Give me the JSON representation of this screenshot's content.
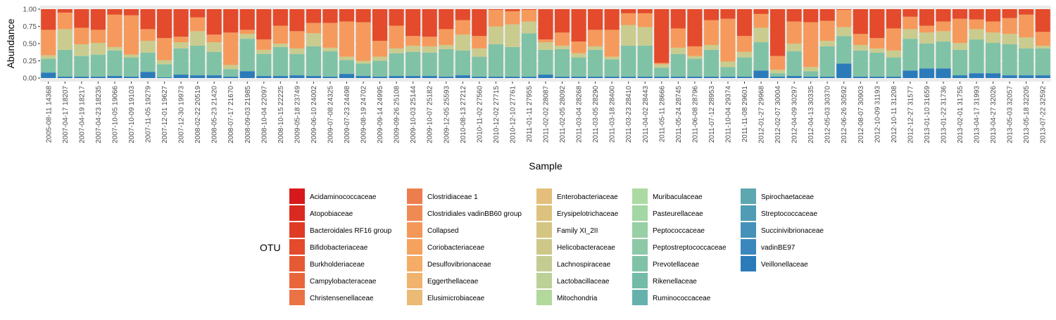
{
  "chart_data": {
    "type": "bar",
    "stacked": true,
    "title": "",
    "xlabel": "Sample",
    "ylabel": "Abundance",
    "ylim": [
      0,
      1
    ],
    "yticks": [
      "0.00",
      "0.25",
      "0.50",
      "0.75",
      "1.00"
    ],
    "yticks_values": [
      0,
      0.25,
      0.5,
      0.75,
      1.0
    ],
    "grid": true,
    "legend_title": "OTU",
    "legend_position": "bottom",
    "categories": [
      "2005-08-11 14368",
      "2007-04-17 18207",
      "2007-04-19 18217",
      "2007-04-23 18235",
      "2007-10-05 19066",
      "2007-10-09 19103",
      "2007-11-05 19279",
      "2007-12-01 19627",
      "2007-12-30 19973",
      "2008-02-22 20519",
      "2008-05-23 21420",
      "2008-07-17 21670",
      "2008-09-03 21985",
      "2008-10-04 22097",
      "2008-10-15 22225",
      "2009-05-18 23749",
      "2009-06-10 24002",
      "2009-07-08 24325",
      "2009-07-23 24498",
      "2009-08-19 24702",
      "2009-09-14 24995",
      "2009-09-26 25108",
      "2009-10-03 25144",
      "2009-10-07 25182",
      "2009-12-05 25593",
      "2010-08-13 27212",
      "2010-11-02 27560",
      "2010-12-02 27715",
      "2010-12-10 27761",
      "2011-01-11 27955",
      "2011-02-02 28087",
      "2011-02-05 28092",
      "2011-03-04 28268",
      "2011-03-05 28290",
      "2011-03-18 28400",
      "2011-03-23 28410",
      "2011-04-02 28443",
      "2011-05-11 28666",
      "2011-05-24 28745",
      "2011-06-08 28796",
      "2011-07-12 28953",
      "2011-10-04 29374",
      "2011-11-08 29601",
      "2012-01-27 29968",
      "2012-02-07 30004",
      "2012-04-09 30297",
      "2012-04-13 30335",
      "2012-05-03 30370",
      "2012-06-26 30592",
      "2012-08-07 30903",
      "2012-10-09 31193",
      "2012-10-11 31208",
      "2012-12-27 31577",
      "2013-01-10 31659",
      "2013-01-22 31736",
      "2013-02-01 31755",
      "2013-04-17 31993",
      "2013-04-27 32026",
      "2013-05-03 32057",
      "2013-05-18 32205",
      "2013-07-22 32592"
    ],
    "series": [
      {
        "name": "Acidaminococcaceae",
        "color": "#D7191C"
      },
      {
        "name": "Atopobiaceae",
        "color": "#DA2A1F"
      },
      {
        "name": "Bacteroidales RF16 group",
        "color": "#DF3B25"
      },
      {
        "name": "Bifidobacteriaceae",
        "color": "#E34B2C"
      },
      {
        "name": "Burkholderiaceae",
        "color": "#E65A33"
      },
      {
        "name": "Campylobacteraceae",
        "color": "#E9663D"
      },
      {
        "name": "Christensenellaceae",
        "color": "#EB7245"
      },
      {
        "name": "Clostridiaceae 1",
        "color": "#EE7D4E"
      },
      {
        "name": "Clostridiales vadinBB60 group",
        "color": "#F08A55"
      },
      {
        "name": "Collapsed",
        "color": "#F4985A"
      },
      {
        "name": "Coriobacteriaceae",
        "color": "#F5A25F"
      },
      {
        "name": "Desulfovibrionaceae",
        "color": "#F6AC66"
      },
      {
        "name": "Eggerthellaceae",
        "color": "#F0B36E"
      },
      {
        "name": "Elusimicrobiaceae",
        "color": "#EBBA74"
      },
      {
        "name": "Enterobacteriaceae",
        "color": "#E4BE7A"
      },
      {
        "name": "Erysipelotrichaceae",
        "color": "#DCC27E"
      },
      {
        "name": "Family XI_2II",
        "color": "#D5C582"
      },
      {
        "name": "Helicobacteraceae",
        "color": "#CDC88A"
      },
      {
        "name": "Lachnospiraceae",
        "color": "#C5CC92"
      },
      {
        "name": "Lactobacillaceae",
        "color": "#BBD196"
      },
      {
        "name": "Mitochondria",
        "color": "#B3D89B"
      },
      {
        "name": "Muribaculaceae",
        "color": "#ABDBA0"
      },
      {
        "name": "Pasteurellaceae",
        "color": "#A3D7A4"
      },
      {
        "name": "Peptococcaceae",
        "color": "#98CFA5"
      },
      {
        "name": "Peptostreptococcaceae",
        "color": "#8DC8A7"
      },
      {
        "name": "Prevotellaceae",
        "color": "#80C2A6"
      },
      {
        "name": "Rikenellaceae",
        "color": "#73BAA7"
      },
      {
        "name": "Ruminococcaceae",
        "color": "#67B1AD"
      },
      {
        "name": "Spirochaetaceae",
        "color": "#5CA7B0"
      },
      {
        "name": "Streptococcaceae",
        "color": "#519CB5"
      },
      {
        "name": "Succinivibrionaceae",
        "color": "#4591BA"
      },
      {
        "name": "vadinBE97",
        "color": "#3A87BD"
      },
      {
        "name": "Veillonellaceae",
        "color": "#2B7BBA"
      }
    ],
    "groups": {
      "red": "#E34B2C",
      "orange": "#F59A5C",
      "khaki": "#C9CC8E",
      "teal": "#80C2A6",
      "blue": "#2B7BBA"
    },
    "bands": {
      "blue": [
        0.08,
        0.02,
        0.02,
        0.02,
        0.03,
        0.02,
        0.09,
        0.01,
        0.05,
        0.04,
        0.04,
        0.02,
        0.1,
        0.03,
        0.03,
        0.04,
        0.03,
        0.02,
        0.06,
        0.03,
        0.02,
        0.03,
        0.03,
        0.03,
        0.02,
        0.04,
        0.02,
        0.02,
        0.02,
        0.02,
        0.05,
        0.02,
        0.02,
        0.02,
        0.02,
        0.02,
        0.02,
        0.02,
        0.02,
        0.02,
        0.02,
        0.02,
        0.02,
        0.11,
        0.02,
        0.03,
        0.02,
        0.02,
        0.21,
        0.02,
        0.02,
        0.02,
        0.11,
        0.14,
        0.14,
        0.04,
        0.07,
        0.07,
        0.04,
        0.04,
        0.04
      ],
      "teal": [
        0.2,
        0.39,
        0.3,
        0.32,
        0.37,
        0.28,
        0.28,
        0.19,
        0.38,
        0.43,
        0.34,
        0.11,
        0.47,
        0.32,
        0.42,
        0.31,
        0.43,
        0.37,
        0.2,
        0.18,
        0.23,
        0.33,
        0.35,
        0.34,
        0.4,
        0.36,
        0.29,
        0.47,
        0.43,
        0.63,
        0.36,
        0.4,
        0.28,
        0.39,
        0.25,
        0.45,
        0.45,
        0.13,
        0.33,
        0.26,
        0.39,
        0.14,
        0.28,
        0.41,
        0.05,
        0.36,
        0.08,
        0.44,
        0.4,
        0.38,
        0.35,
        0.28,
        0.46,
        0.36,
        0.39,
        0.37,
        0.49,
        0.44,
        0.45,
        0.39,
        0.39
      ],
      "khaki": [
        0.05,
        0.3,
        0.17,
        0.17,
        0.05,
        0.04,
        0.17,
        0.06,
        0.09,
        0.21,
        0.14,
        0.06,
        0.07,
        0.06,
        0.05,
        0.08,
        0.19,
        0.05,
        0.05,
        0.04,
        0.06,
        0.07,
        0.09,
        0.09,
        0.06,
        0.23,
        0.12,
        0.26,
        0.33,
        0.17,
        0.11,
        0.05,
        0.06,
        0.05,
        0.04,
        0.3,
        0.27,
        0.05,
        0.09,
        0.04,
        0.07,
        0.08,
        0.08,
        0.21,
        0.05,
        0.11,
        0.06,
        0.08,
        0.13,
        0.08,
        0.06,
        0.1,
        0.14,
        0.16,
        0.15,
        0.1,
        0.15,
        0.15,
        0.15,
        0.16,
        0.04
      ],
      "orange": [
        0.37,
        0.24,
        0.24,
        0.19,
        0.47,
        0.57,
        0.17,
        0.32,
        0.08,
        0.2,
        0.11,
        0.47,
        0.06,
        0.15,
        0.26,
        0.25,
        0.15,
        0.36,
        0.51,
        0.56,
        0.23,
        0.33,
        0.14,
        0.14,
        0.23,
        0.21,
        0.18,
        0.24,
        0.19,
        0.17,
        0.04,
        0.19,
        0.17,
        0.24,
        0.39,
        0.17,
        0.2,
        0.02,
        0.28,
        0.14,
        0.36,
        0.62,
        0.23,
        0.2,
        0.2,
        0.32,
        0.65,
        0.29,
        0.25,
        0.16,
        0.15,
        0.32,
        0.18,
        0.1,
        0.14,
        0.35,
        0.14,
        0.16,
        0.23,
        0.33,
        0.2
      ],
      "red": [
        0.3,
        0.05,
        0.27,
        0.3,
        0.08,
        0.09,
        0.29,
        0.42,
        0.4,
        0.12,
        0.37,
        0.34,
        0.3,
        0.44,
        0.24,
        0.32,
        0.2,
        0.2,
        0.18,
        0.19,
        0.46,
        0.24,
        0.39,
        0.4,
        0.29,
        0.16,
        0.39,
        0.01,
        0.03,
        0.01,
        0.44,
        0.34,
        0.47,
        0.3,
        0.3,
        0.06,
        0.06,
        0.78,
        0.28,
        0.54,
        0.16,
        0.14,
        0.39,
        0.07,
        0.68,
        0.18,
        0.19,
        0.17,
        0.01,
        0.36,
        0.42,
        0.28,
        0.11,
        0.24,
        0.18,
        0.14,
        0.15,
        0.18,
        0.13,
        0.08,
        0.33
      ]
    }
  }
}
